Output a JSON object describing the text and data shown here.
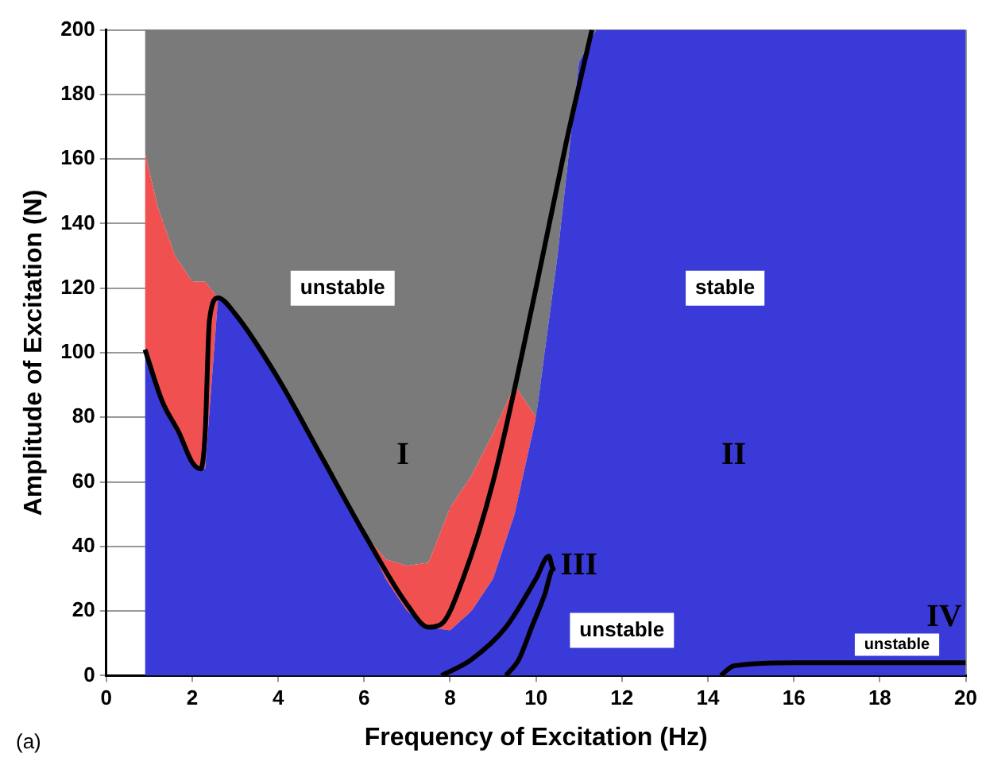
{
  "chart_data": {
    "type": "line",
    "xlabel": "Frequency of Excitation (Hz)",
    "ylabel": "Amplitude of Excitation (N)",
    "xlim": [
      0,
      20
    ],
    "ylim": [
      0,
      200
    ],
    "xticks": [
      0,
      2,
      4,
      6,
      8,
      10,
      12,
      14,
      16,
      18,
      20
    ],
    "yticks": [
      0,
      20,
      40,
      60,
      80,
      100,
      120,
      140,
      160,
      180,
      200
    ],
    "grid": true,
    "legend": false,
    "stacked": true,
    "marker": "none",
    "x": [
      0.9,
      1.2,
      1.6,
      2.0,
      2.3,
      2.6,
      3,
      4,
      5,
      6,
      6.5,
      7,
      7.5,
      8,
      8.5,
      9,
      9.5,
      10,
      10.5,
      11,
      11.4,
      12,
      14,
      16,
      18,
      20
    ],
    "series": [
      {
        "type": "area",
        "color": "#3a3ad8",
        "values": [
          100,
          88,
          76,
          66,
          64,
          117,
          112,
          92,
          68,
          44,
          30,
          20,
          15,
          14,
          20,
          30,
          50,
          80,
          130,
          190,
          200,
          200,
          200,
          200,
          200,
          200
        ]
      },
      {
        "type": "area",
        "color": "#f05050",
        "values": [
          62,
          57,
          54,
          56,
          58,
          0,
          0,
          0,
          0,
          0,
          6,
          14,
          20,
          38,
          42,
          45,
          40,
          0,
          0,
          0,
          0,
          0,
          0,
          0,
          0,
          0
        ]
      },
      {
        "type": "area",
        "color": "#7a7a7a",
        "values": [
          38,
          55,
          70,
          78,
          78,
          83,
          88,
          108,
          132,
          156,
          164,
          166,
          165,
          148,
          138,
          125,
          110,
          120,
          70,
          10,
          0,
          0,
          0,
          0,
          0,
          0
        ]
      },
      {
        "type": "line",
        "color": "#000000",
        "x": [
          0.9,
          1.3,
          1.7,
          2.0,
          2.2,
          2.3,
          2.4,
          2.6,
          3,
          4,
          5,
          6,
          7,
          7.5,
          7.8,
          8.3,
          9,
          10,
          10.7,
          11.3
        ],
        "values": [
          101,
          85,
          75,
          66,
          64,
          75,
          110,
          117,
          112,
          92,
          68,
          44,
          22,
          15,
          16,
          30,
          60,
          120,
          165,
          200
        ]
      },
      {
        "type": "line",
        "color": "#000000",
        "x": [
          7.8,
          8.5,
          9.3,
          10,
          10.3,
          10.4,
          10.2,
          9.9,
          9.6,
          9.3
        ],
        "values": [
          0,
          5,
          15,
          30,
          37,
          33,
          25,
          15,
          5,
          0
        ]
      },
      {
        "type": "line",
        "color": "#000000",
        "x": [
          14.3,
          14.6,
          16,
          18,
          20
        ],
        "values": [
          0,
          3,
          4,
          4,
          4
        ]
      }
    ],
    "annotations": [
      "unstable",
      "stable",
      "I",
      "II",
      "III",
      "unstable",
      "IV",
      "unstable",
      "(a)"
    ]
  }
}
